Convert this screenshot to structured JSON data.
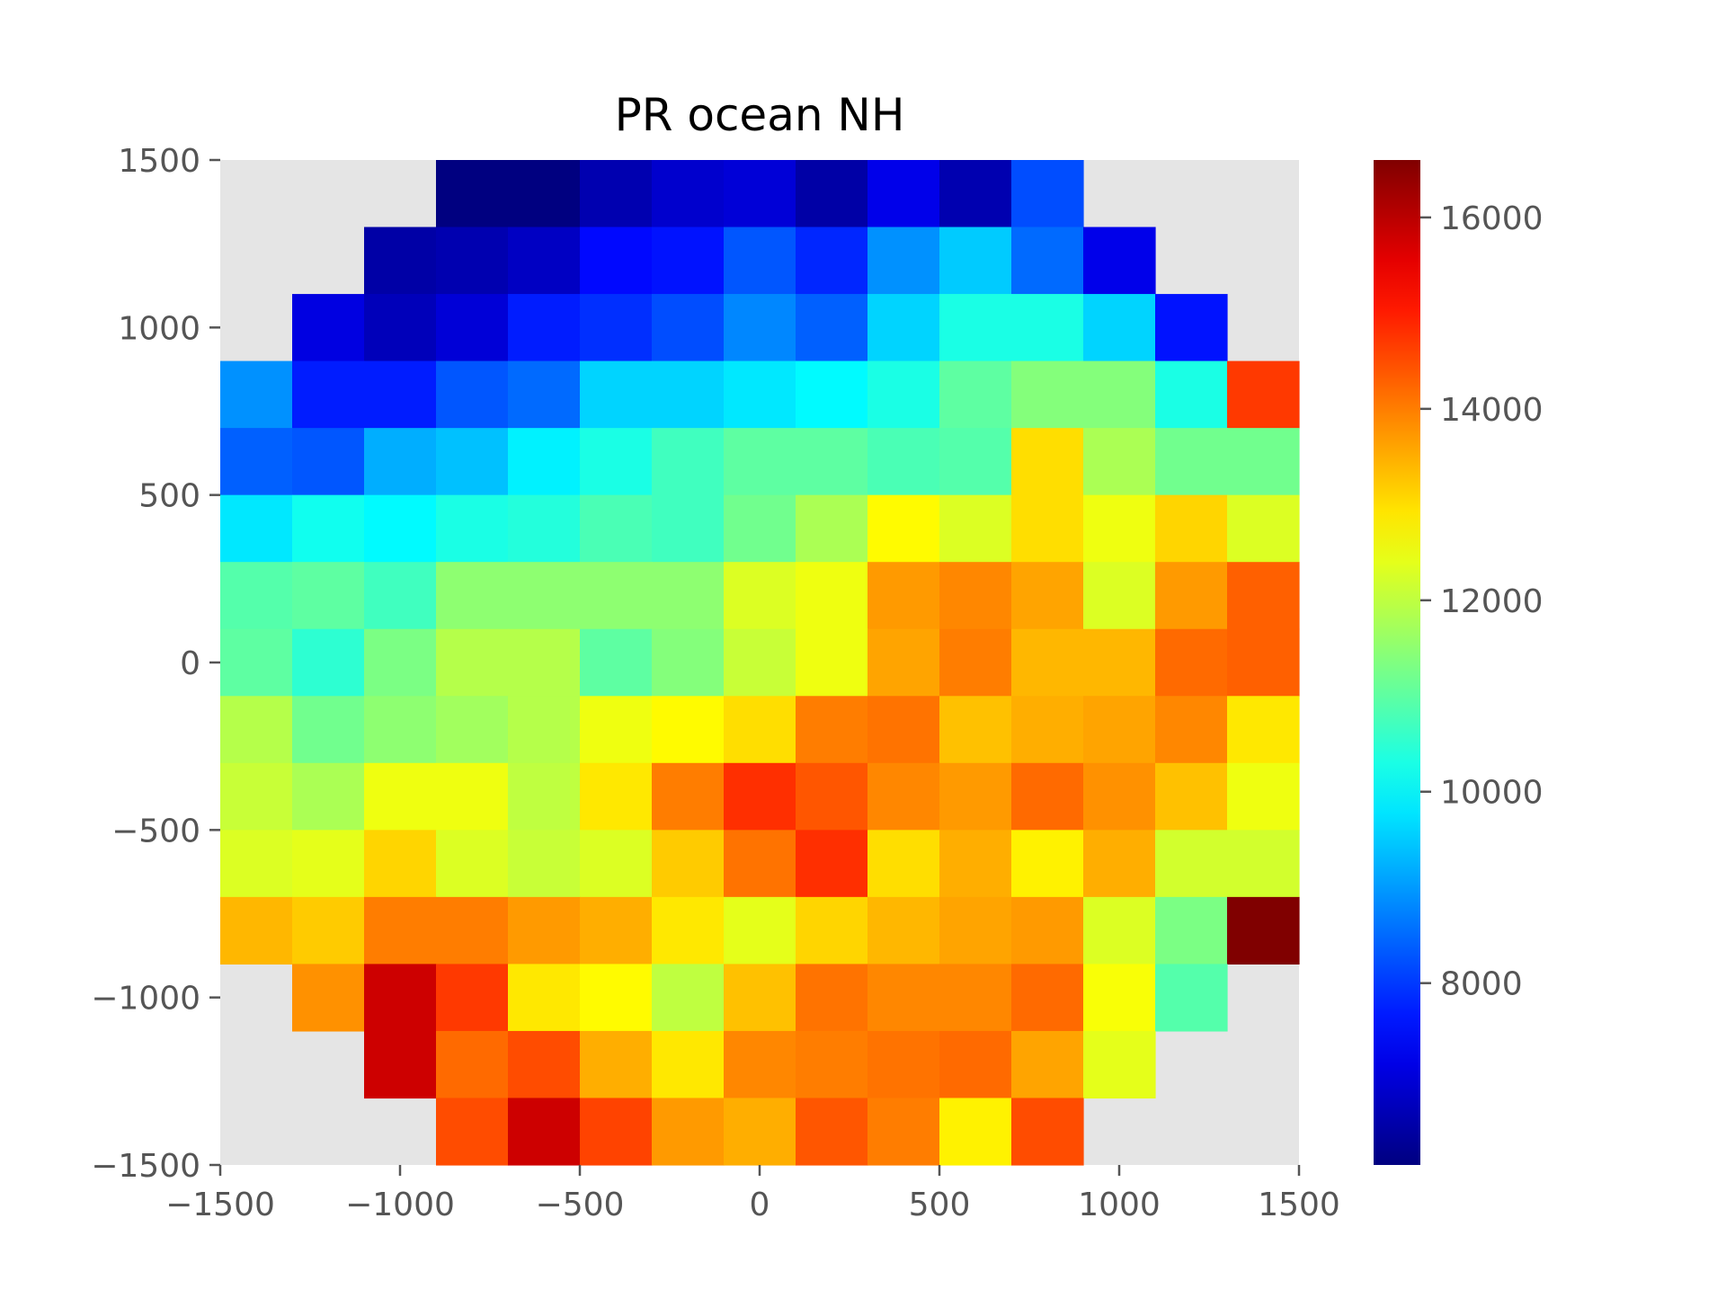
{
  "chart_data": {
    "type": "heatmap",
    "title": "PR ocean NH",
    "xlabel": "",
    "ylabel": "",
    "xlim": [
      -1500,
      1500
    ],
    "ylim": [
      -1500,
      1500
    ],
    "x_ticks": [
      -1500,
      -1000,
      -500,
      0,
      500,
      1000,
      1500
    ],
    "y_ticks": [
      -1500,
      -1000,
      -500,
      0,
      500,
      1000,
      1500
    ],
    "x_tick_labels": [
      "−1500",
      "−1000",
      "−500",
      "0",
      "500",
      "1000",
      "1500"
    ],
    "y_tick_labels": [
      "−1500",
      "−1000",
      "−500",
      "0",
      "500",
      "1000",
      "1500"
    ],
    "colormap": "jet",
    "colorbar": {
      "vmin": 6100,
      "vmax": 16600,
      "ticks": [
        8000,
        10000,
        12000,
        14000,
        16000
      ],
      "tick_labels": [
        "8000",
        "10000",
        "12000",
        "14000",
        "16000"
      ]
    },
    "missing_color": "#e5e5e5",
    "x_edges": [
      -1500,
      -1300,
      -1100,
      -900,
      -700,
      -500,
      -300,
      -100,
      100,
      300,
      500,
      700,
      900,
      1100,
      1300,
      1500
    ],
    "y_edges": [
      1500,
      1300,
      1100,
      900,
      700,
      500,
      300,
      100,
      -100,
      -300,
      -500,
      -700,
      -900,
      -1100,
      -1300,
      -1500
    ],
    "rows_top_to_bottom": [
      [
        null,
        null,
        null,
        6100,
        6100,
        6600,
        6900,
        7000,
        6500,
        7200,
        6600,
        8200,
        null,
        null,
        null
      ],
      [
        null,
        null,
        6500,
        6600,
        6800,
        7500,
        7600,
        8300,
        7800,
        8900,
        9500,
        8500,
        7200,
        null,
        null
      ],
      [
        null,
        7100,
        6700,
        7000,
        7700,
        7900,
        8200,
        8800,
        8400,
        9600,
        10300,
        10300,
        9600,
        7600,
        null
      ],
      [
        8900,
        7700,
        7700,
        8300,
        8500,
        9600,
        9600,
        9800,
        10000,
        10300,
        11000,
        11400,
        11400,
        10300,
        14700
      ],
      [
        8400,
        8300,
        9200,
        9400,
        9900,
        10300,
        10700,
        11000,
        11000,
        10800,
        10900,
        13000,
        11800,
        11200,
        11200
      ],
      [
        9800,
        10200,
        10000,
        10300,
        10400,
        10800,
        10700,
        11200,
        11800,
        12700,
        12300,
        13000,
        12500,
        13100,
        12300
      ],
      [
        10900,
        11000,
        10700,
        11500,
        11500,
        11500,
        11500,
        12300,
        12500,
        13700,
        13900,
        13600,
        12300,
        13700,
        14300
      ],
      [
        11000,
        10500,
        11300,
        11900,
        11900,
        11000,
        11400,
        12100,
        12500,
        13600,
        14000,
        13400,
        13400,
        14200,
        14300
      ],
      [
        11900,
        11200,
        11500,
        11700,
        11900,
        12500,
        12700,
        13000,
        14000,
        14100,
        13300,
        13500,
        13600,
        13900,
        12900
      ],
      [
        12100,
        11800,
        12500,
        12500,
        12000,
        12900,
        14000,
        14800,
        14400,
        13900,
        13700,
        14200,
        13800,
        13300,
        12500
      ],
      [
        12300,
        12400,
        13100,
        12300,
        12100,
        12300,
        13200,
        14100,
        14800,
        13000,
        13500,
        12800,
        13500,
        12200,
        12200
      ],
      [
        13400,
        13200,
        14000,
        14000,
        13700,
        13500,
        12900,
        12400,
        13100,
        13400,
        13600,
        13700,
        12300,
        11300,
        16600
      ],
      [
        null,
        13800,
        15800,
        14700,
        12900,
        12700,
        12000,
        13300,
        14100,
        13900,
        13900,
        14200,
        12600,
        10900,
        null
      ],
      [
        null,
        null,
        15800,
        14200,
        14500,
        13500,
        12900,
        13900,
        14000,
        14100,
        14200,
        13600,
        12400,
        null,
        null
      ],
      [
        null,
        null,
        null,
        14500,
        15800,
        14600,
        13700,
        13500,
        14400,
        14000,
        12800,
        14500,
        null,
        null,
        null
      ]
    ]
  }
}
